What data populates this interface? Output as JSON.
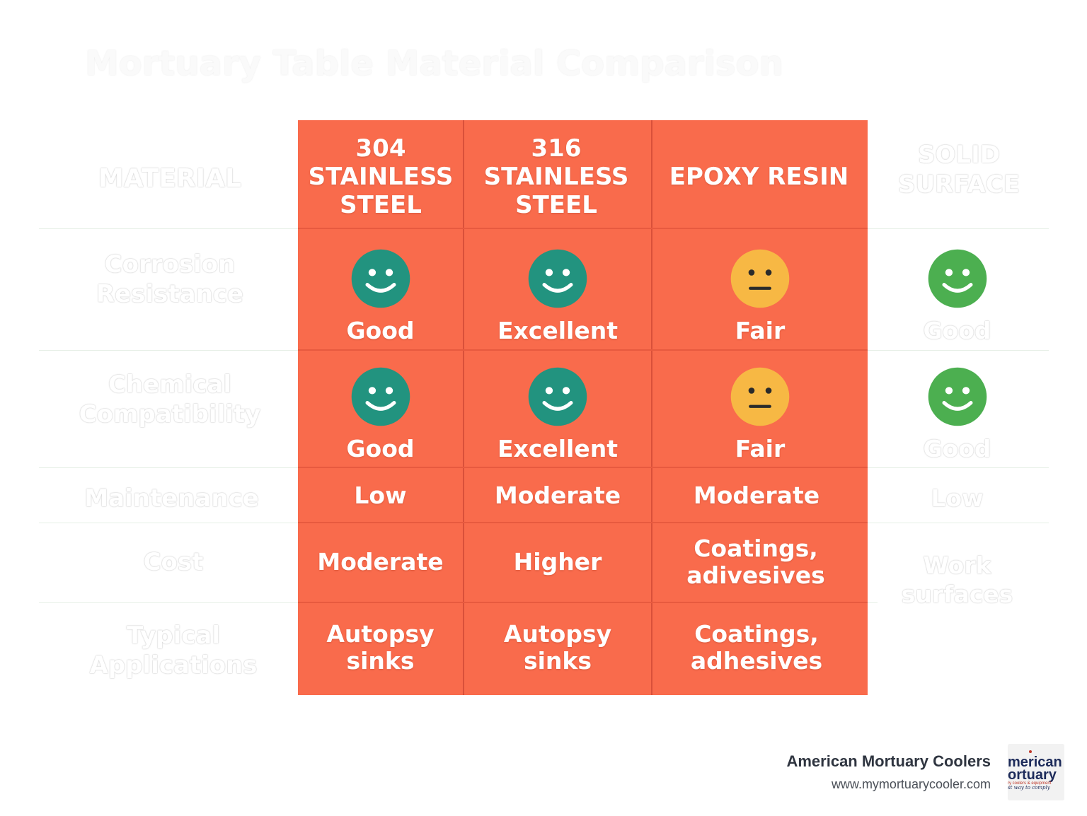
{
  "ghost_title": "Mortuary Table Material Comparison",
  "row_labels": {
    "material": "MATERIAL",
    "corrosion": "Corrosion Resistance",
    "chemical": "Chemical Compatibility",
    "maintenance": "Maintenance",
    "cost": "Cost",
    "applications": "Typical Applications"
  },
  "columns": [
    {
      "header": "304 STAINLESS STEEL",
      "corrosion": {
        "rating": "Good",
        "face": "happy-green-icon"
      },
      "chemical": {
        "rating": "Good",
        "face": "happy-green-icon"
      },
      "maintenance": "Low",
      "cost": "Moderate",
      "applications": "Autopsy sinks"
    },
    {
      "header": "316 STAINLESS STEEL",
      "corrosion": {
        "rating": "Excellent",
        "face": "happy-green-icon"
      },
      "chemical": {
        "rating": "Excellent",
        "face": "happy-green-icon"
      },
      "maintenance": "Moderate",
      "cost": "Higher",
      "applications": "Autopsy sinks"
    },
    {
      "header": "EPOXY RESIN",
      "corrosion": {
        "rating": "Fair",
        "face": "neutral-yellow-icon"
      },
      "chemical": {
        "rating": "Fair",
        "face": "neutral-yellow-icon"
      },
      "maintenance": "Moderate",
      "cost": "Coatings, adivesives",
      "applications": "Coatings, adhesives"
    },
    {
      "header": "SOLID SURFACE",
      "corrosion": {
        "rating": "Good",
        "face": "happy-green-icon"
      },
      "chemical": {
        "rating": "Good",
        "face": "happy-green-icon"
      },
      "maintenance": "Low",
      "cost": "Work surfaces",
      "applications": ""
    }
  ],
  "colors": {
    "table_fill": "#f96b4c",
    "happy_teal": "#22937f",
    "happy_green": "#4caf50",
    "neutral_yellow": "#f7b844"
  },
  "brand": {
    "name": "American Mortuary Coolers",
    "url": "www.mymortuarycooler.com",
    "logo_line1": "merican",
    "logo_line2": "ortuary",
    "logo_tagline": "ry coolers & equipment",
    "logo_slogan": "st way to comply"
  }
}
